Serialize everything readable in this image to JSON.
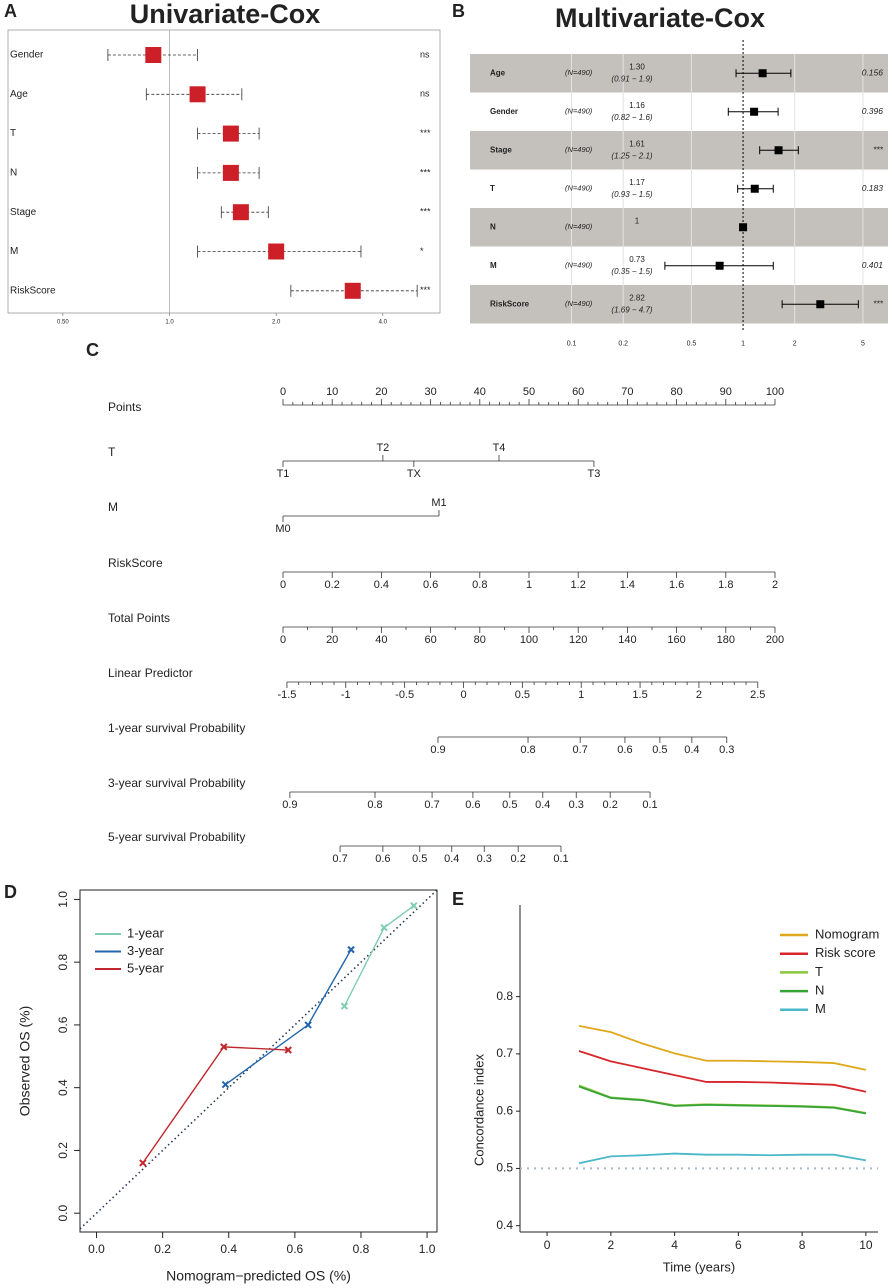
{
  "chart_data": [
    {
      "type": "forest",
      "panel": "A",
      "title": "Univariate-Cox",
      "categories": [
        "Gender",
        "Age",
        "T",
        "N",
        "Stage",
        "M",
        "RiskScore"
      ],
      "values": [
        0.9,
        1.2,
        1.49,
        1.49,
        1.59,
        2.0,
        3.29
      ],
      "lower": [
        0.67,
        0.86,
        1.2,
        1.2,
        1.4,
        1.2,
        2.2
      ],
      "upper": [
        1.2,
        1.6,
        1.79,
        1.79,
        1.9,
        3.47,
        5.0
      ],
      "annotations": [
        "ns",
        "ns",
        "***",
        "***",
        "***",
        "*",
        "***"
      ],
      "color": "#cc1f27",
      "log_x": true,
      "ref": 1,
      "xlim": [
        0.35,
        5.8
      ],
      "xticks": [
        {
          "value": 0.5,
          "label": "0.50"
        },
        {
          "value": 1,
          "label": "1.0"
        },
        {
          "value": 2,
          "label": "2.0"
        },
        {
          "value": 4,
          "label": "4.0"
        }
      ]
    },
    {
      "type": "forest_table",
      "panel": "B",
      "title": "Multivariate-Cox",
      "categories": [
        "Age",
        "Gender",
        "Stage",
        "T",
        "N",
        "M",
        "RiskScore"
      ],
      "n_labels": [
        "(N=490)",
        "(N=490)",
        "(N=490)",
        "(N=490)",
        "(N=490)",
        "(N=490)",
        "(N=490)"
      ],
      "values": [
        1.3,
        1.16,
        1.61,
        1.17,
        1,
        0.73,
        2.82
      ],
      "value_labels": [
        "1.30",
        "1.16",
        "1.61",
        "1.17",
        "1",
        "0.73",
        "2.82"
      ],
      "lower": [
        0.91,
        0.82,
        1.25,
        0.93,
        null,
        0.35,
        1.69
      ],
      "upper": [
        1.9,
        1.6,
        2.1,
        1.5,
        null,
        1.5,
        4.7
      ],
      "ci_labels": [
        "(0.91 − 1.9)",
        "(0.82 − 1.6)",
        "(1.25 − 2.1)",
        "(0.93 − 1.5)",
        null,
        "(0.35 − 1.5)",
        "(1.69 − 4.7)"
      ],
      "annotations": [
        "0.156",
        "0.396",
        "***",
        "0.183",
        null,
        "0.401",
        "***"
      ],
      "color": "#000000",
      "band_color": "#c4c0bb",
      "log_x": true,
      "ref": 1,
      "xlim": [
        0.07,
        7
      ],
      "xticks": [
        0.1,
        0.2,
        0.5,
        1,
        2,
        5
      ]
    },
    {
      "type": "nomogram",
      "panel": "C",
      "rows": [
        {
          "name": "Points",
          "ticks": [
            0,
            10,
            20,
            30,
            40,
            50,
            60,
            70,
            80,
            90,
            100
          ],
          "lim": [
            0,
            100
          ],
          "points_lim": [
            0,
            100
          ],
          "minor": 5,
          "labels_above": true
        },
        {
          "name": "T",
          "levels": [
            "T1",
            "T2",
            "TX",
            "T4",
            "T3"
          ],
          "points": [
            0,
            20.3,
            26.6,
            43.9,
            63.2
          ],
          "above": [
            false,
            true,
            false,
            true,
            false
          ]
        },
        {
          "name": "M",
          "levels": [
            "M0",
            "M1"
          ],
          "points": [
            0,
            31.7
          ],
          "above": [
            false,
            true
          ]
        },
        {
          "name": "RiskScore",
          "ticks": [
            0,
            0.2,
            0.4,
            0.6,
            0.8,
            1,
            1.2,
            1.4,
            1.6,
            1.8,
            2
          ],
          "lim": [
            0,
            2
          ],
          "points_lim": [
            0,
            100
          ]
        },
        {
          "name": "Total Points",
          "ticks": [
            0,
            20,
            40,
            60,
            80,
            100,
            120,
            140,
            160,
            180,
            200
          ],
          "lim": [
            0,
            200
          ],
          "points_lim": [
            0,
            100
          ],
          "minor": 2
        },
        {
          "name": "Linear Predictor",
          "ticks": [
            -1.5,
            -1,
            -0.5,
            0,
            0.5,
            1,
            1.5,
            2,
            2.5
          ],
          "lim": [
            -1.5,
            2.5
          ],
          "points_lim": [
            0.8,
            96.5
          ],
          "minor": 5
        },
        {
          "name": "1-year survival Probability",
          "ticks": [
            0.9,
            0.8,
            0.7,
            0.6,
            0.5,
            0.4,
            0.3
          ],
          "points": [
            31.5,
            49.8,
            60.4,
            69.5,
            76.6,
            83.1,
            90.2
          ]
        },
        {
          "name": "3-year survival Probability",
          "ticks": [
            0.9,
            0.8,
            0.7,
            0.6,
            0.5,
            0.4,
            0.3,
            0.2,
            0.1
          ],
          "points": [
            1.4,
            18.7,
            30.3,
            38.6,
            46.1,
            52.8,
            59.6,
            66.5,
            74.6
          ]
        },
        {
          "name": "5-year survival Probability",
          "ticks": [
            0.7,
            0.6,
            0.5,
            0.4,
            0.3,
            0.2,
            0.1
          ],
          "points": [
            11.6,
            20.3,
            27.8,
            34.3,
            40.9,
            47.8,
            56.5
          ]
        }
      ]
    },
    {
      "type": "calibration",
      "panel": "D",
      "xlabel": "Nomogram−predicted OS (%)",
      "ylabel": "Observed OS (%)",
      "xlim": [
        -0.05,
        1.03
      ],
      "ylim": [
        -0.06,
        1.03
      ],
      "xticks": [
        {
          "value": 0,
          "label": "0.0"
        },
        0.2,
        0.4,
        0.6,
        0.8,
        {
          "value": 1,
          "label": "1.0"
        }
      ],
      "yticks": [
        {
          "value": 0,
          "label": "0.0"
        },
        0.2,
        0.4,
        0.6,
        0.8,
        {
          "value": 1,
          "label": "1.0"
        }
      ],
      "reference_line": true,
      "legend": "upper left",
      "series": [
        {
          "name": "1-year",
          "color": "#7fcdb0",
          "x": [
            0.75,
            0.87,
            0.96
          ],
          "values": [
            0.66,
            0.91,
            0.98
          ]
        },
        {
          "name": "3-year",
          "color": "#2166ac",
          "x": [
            0.39,
            0.64,
            0.77
          ],
          "values": [
            0.41,
            0.6,
            0.84
          ]
        },
        {
          "name": "5-year",
          "color": "#c1272d",
          "x": [
            0.14,
            0.385,
            0.58
          ],
          "values": [
            0.16,
            0.53,
            0.52
          ]
        }
      ]
    },
    {
      "type": "line",
      "panel": "E",
      "xlabel": "Time (years)",
      "ylabel": "Concordance index",
      "x": [
        1,
        2,
        3,
        4,
        5,
        6,
        7,
        8,
        9,
        10
      ],
      "xlim": [
        -0.85,
        10.38
      ],
      "ylim": [
        0.389,
        0.96
      ],
      "xticks": [
        0,
        2,
        4,
        6,
        8,
        10
      ],
      "yticks": [
        0.4,
        0.5,
        0.6,
        0.7,
        0.8
      ],
      "hline": 0.5,
      "legend": "upper right",
      "series": [
        {
          "name": "Nomogram",
          "color": "#e0a81c",
          "values": [
            0.749,
            0.738,
            0.718,
            0.701,
            0.688,
            0.688,
            0.687,
            0.686,
            0.684,
            0.672
          ]
        },
        {
          "name": "Risk score",
          "color": "#d7262b",
          "values": [
            0.705,
            0.687,
            0.675,
            0.663,
            0.651,
            0.651,
            0.65,
            0.648,
            0.646,
            0.634
          ]
        },
        {
          "name": "T",
          "color": "#8cc63f",
          "values": [
            0.645,
            0.624,
            0.62,
            0.61,
            0.612,
            0.611,
            0.61,
            0.609,
            0.607,
            0.597
          ]
        },
        {
          "name": "N",
          "color": "#36a336",
          "values": [
            0.643,
            0.623,
            0.619,
            0.609,
            0.611,
            0.61,
            0.609,
            0.608,
            0.606,
            0.596
          ]
        },
        {
          "name": "M",
          "color": "#4ab8c8",
          "values": [
            0.509,
            0.521,
            0.523,
            0.526,
            0.524,
            0.524,
            0.523,
            0.524,
            0.524,
            0.514
          ]
        }
      ]
    }
  ]
}
